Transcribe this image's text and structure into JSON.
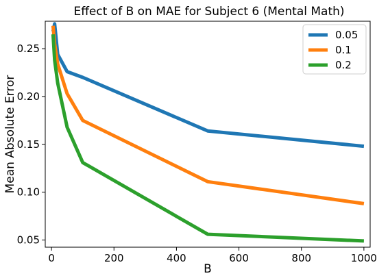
{
  "chart_data": {
    "type": "line",
    "title": "Effect of B on MAE for Subject 6 (Mental Math)",
    "xlabel": "B",
    "ylabel": "Mean Absolute Error",
    "xlim": [
      -20,
      1020
    ],
    "ylim": [
      0.0425,
      0.2787
    ],
    "xticks": [
      0,
      200,
      400,
      600,
      800,
      1000
    ],
    "yticks": [
      0.05,
      0.1,
      0.15,
      0.2,
      0.25
    ],
    "ytick_labels": [
      "0.05",
      "0.10",
      "0.15",
      "0.20",
      "0.25"
    ],
    "grid": false,
    "legend_position": "top-right",
    "series": [
      {
        "name": "0.05",
        "color": "#1f77b4",
        "x": [
          5,
          10,
          20,
          50,
          100,
          500,
          1000
        ],
        "y": [
          0.268,
          0.276,
          0.244,
          0.226,
          0.22,
          0.164,
          0.148
        ]
      },
      {
        "name": "0.1",
        "color": "#ff7f0e",
        "x": [
          5,
          10,
          20,
          50,
          100,
          500,
          1000
        ],
        "y": [
          0.274,
          0.255,
          0.234,
          0.203,
          0.175,
          0.111,
          0.088
        ]
      },
      {
        "name": "0.2",
        "color": "#2ca02c",
        "x": [
          5,
          10,
          20,
          50,
          100,
          500,
          1000
        ],
        "y": [
          0.265,
          0.238,
          0.214,
          0.168,
          0.131,
          0.056,
          0.049
        ]
      }
    ]
  }
}
